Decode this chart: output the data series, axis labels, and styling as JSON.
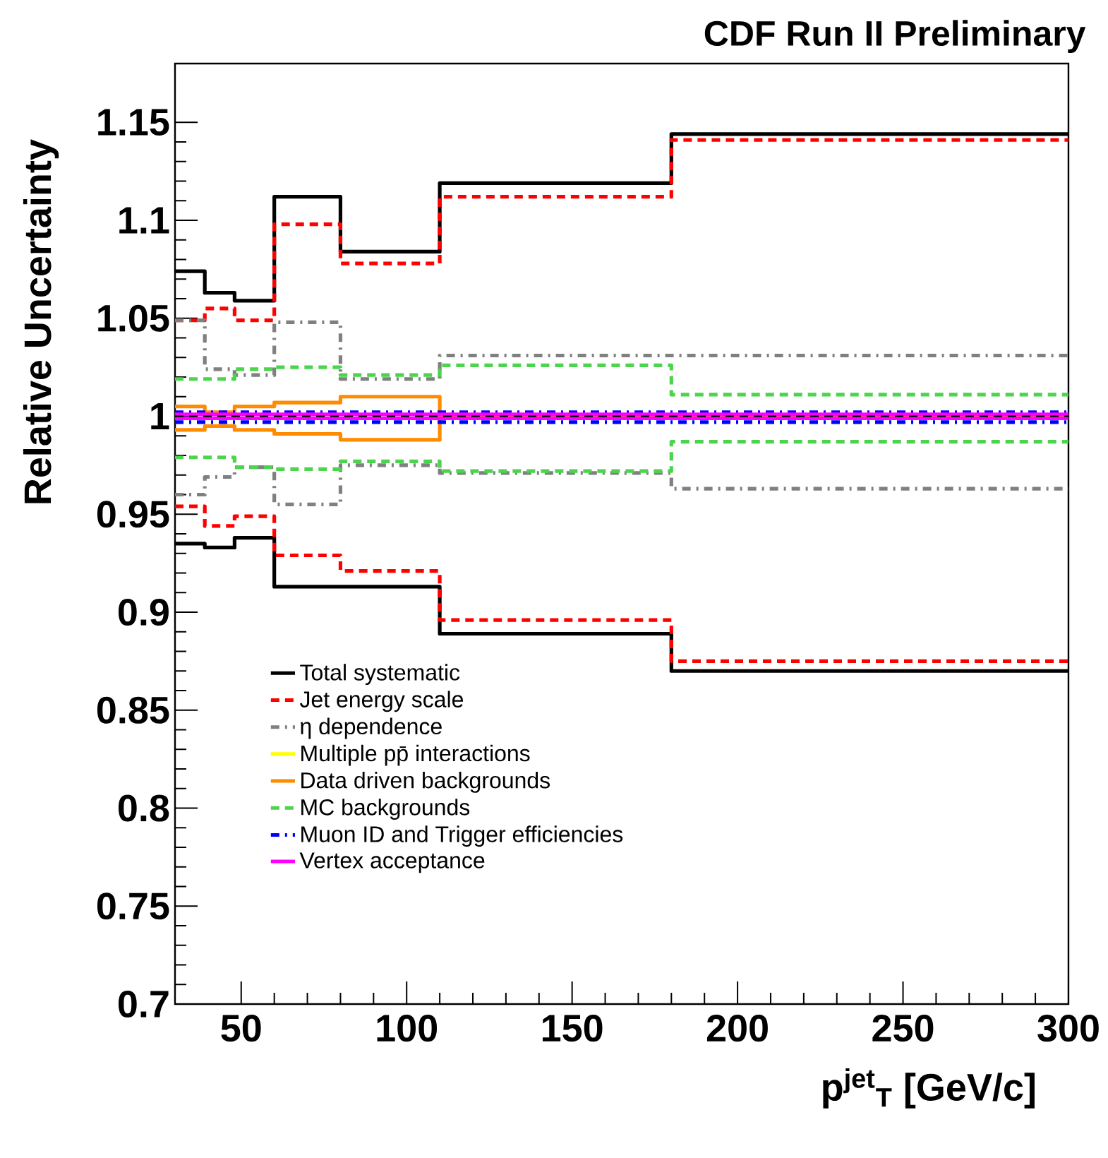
{
  "chart_data": {
    "type": "step",
    "title": "CDF Run II Preliminary",
    "xlabel": "p$^{jet}$$_{T}$  [GeV/c]",
    "ylabel": "Relative Uncertainty",
    "x": [
      30,
      39,
      48,
      60,
      80,
      110,
      180,
      300
    ],
    "xlim": [
      30,
      300
    ],
    "xticks": [
      50,
      100,
      150,
      200,
      250,
      300
    ],
    "ylim": [
      0.7,
      1.18
    ],
    "yticks": [
      0.7,
      0.75,
      0.8,
      0.85,
      0.9,
      0.95,
      1,
      1.05,
      1.1,
      1.15
    ],
    "legend": "bottom left",
    "grid": false,
    "series": [
      {
        "name": "Total systematic",
        "color": "#000000",
        "line_style": "solid",
        "values": [
          1.074,
          1.063,
          1.059,
          1.112,
          1.084,
          1.119,
          1.144,
          1.144
        ]
      },
      {
        "color": "#000000",
        "line_style": "solid",
        "values": [
          0.935,
          0.933,
          0.938,
          0.913,
          0.913,
          0.889,
          0.87,
          0.87
        ]
      },
      {
        "name": "Jet energy scale",
        "color": "#ff0000",
        "line_style": "dashed",
        "values": [
          1.049,
          1.055,
          1.049,
          1.098,
          1.078,
          1.112,
          1.141,
          1.141
        ]
      },
      {
        "color": "#ff0000",
        "line_style": "dashed",
        "values": [
          0.954,
          0.944,
          0.949,
          0.929,
          0.921,
          0.896,
          0.875,
          0.875
        ]
      },
      {
        "name": "η dependence",
        "color": "#808080",
        "line_style": "dashdot",
        "values": [
          1.049,
          1.024,
          1.021,
          1.048,
          1.019,
          1.031,
          1.031,
          1.031
        ]
      },
      {
        "color": "#808080",
        "line_style": "dashdot",
        "values": [
          0.96,
          0.969,
          0.974,
          0.955,
          0.975,
          0.971,
          0.963,
          0.963
        ]
      },
      {
        "name": "Multiple pp̄ interactions",
        "color": "#ffff00",
        "line_style": "solid",
        "values": [
          null,
          null,
          null,
          null,
          null,
          null,
          null,
          null
        ]
      },
      {
        "name": "Data driven backgrounds",
        "color": "#ff8c00",
        "line_style": "solid",
        "values": [
          1.005,
          1.002,
          1.005,
          1.007,
          1.01,
          1,
          1,
          1
        ]
      },
      {
        "color": "#ff8c00",
        "line_style": "solid",
        "values": [
          0.993,
          0.995,
          0.993,
          0.991,
          0.988,
          1,
          1,
          1
        ]
      },
      {
        "name": "MC backgrounds",
        "color": "#4dd44d",
        "line_style": "dashed",
        "values": [
          1.019,
          1.019,
          1.024,
          1.025,
          1.021,
          1.026,
          1.011,
          1.011
        ]
      },
      {
        "color": "#4dd44d",
        "line_style": "dashed",
        "values": [
          0.979,
          0.979,
          0.974,
          0.973,
          0.977,
          0.972,
          0.987,
          0.987
        ]
      },
      {
        "name": "Muon ID and Trigger efficiencies",
        "color": "#0000ff",
        "line_style": "dashdot",
        "values": [
          1.002,
          1.002,
          1.002,
          1.002,
          1.002,
          1.002,
          1.002,
          1.002
        ]
      },
      {
        "color": "#0000ff",
        "line_style": "dashdot",
        "values": [
          0.997,
          0.997,
          0.997,
          0.997,
          0.997,
          0.997,
          0.997,
          0.997
        ]
      },
      {
        "name": "Vertex acceptance",
        "color": "#ff00ff",
        "line_style": "solid",
        "values": [
          1.001,
          1.001,
          1.001,
          1.001,
          1.001,
          1.001,
          1.001,
          1.001
        ]
      },
      {
        "color": "#ff00ff",
        "line_style": "solid",
        "values": [
          0.999,
          0.999,
          0.999,
          0.999,
          0.999,
          0.999,
          0.999,
          0.999
        ]
      }
    ],
    "ref_lines": [
      {
        "axis": "y",
        "value": 1,
        "color": "#000000",
        "line_style": "dashed"
      }
    ]
  }
}
